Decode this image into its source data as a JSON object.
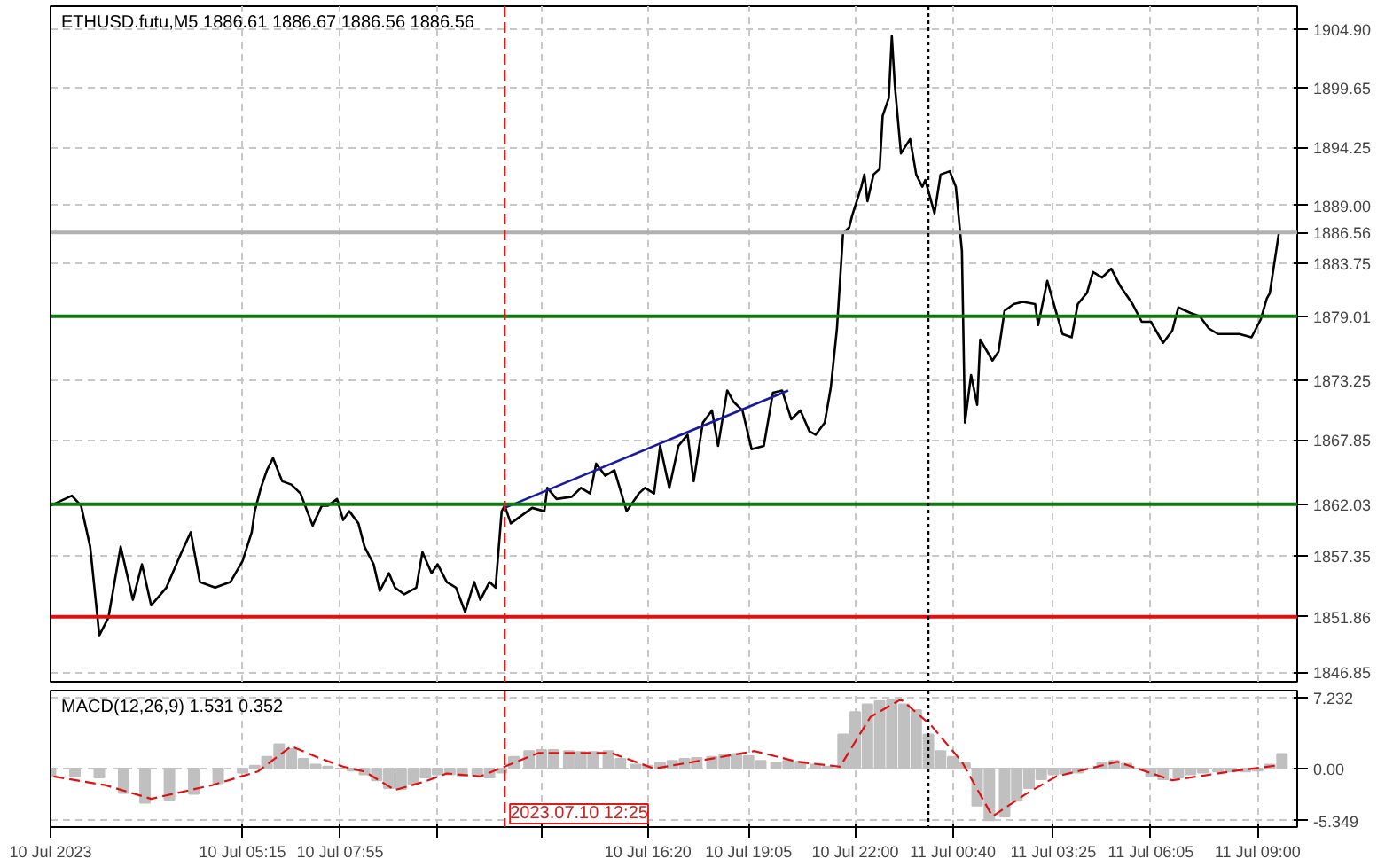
{
  "chart_data": [
    {
      "type": "line",
      "title": "ETHUSD.futu,M5  1886.61 1886.67 1886.56 1886.56",
      "xlim": [
        "2023-07-10T00:00",
        "2023-07-11T10:05"
      ],
      "ylim": [
        1846.0,
        1907.0
      ],
      "tick_labels": "y",
      "grid": true,
      "xticks": [
        {
          "value": "2023-07-10T00:00",
          "label": null
        },
        {
          "value": "2023-07-10T05:15",
          "label": null
        },
        {
          "value": "2023-07-10T07:55",
          "label": null
        },
        {
          "value": "2023-07-10T10:35",
          "label": null
        },
        {
          "value": "2023-07-10T13:25",
          "label": null
        },
        {
          "value": "2023-07-10T16:20",
          "label": null
        },
        {
          "value": "2023-07-10T19:05",
          "label": null
        },
        {
          "value": "2023-07-10T22:00",
          "label": null
        },
        {
          "value": "2023-07-11T00:40",
          "label": null
        },
        {
          "value": "2023-07-11T03:25",
          "label": null
        },
        {
          "value": "2023-07-11T06:05",
          "label": null
        },
        {
          "value": "2023-07-11T09:00",
          "label": null
        }
      ],
      "yticks": [
        {
          "value": 1904.9,
          "label": "1904.90"
        },
        {
          "value": 1899.65,
          "label": "1899.65"
        },
        {
          "value": 1894.25,
          "label": "1894.25"
        },
        {
          "value": 1889.0,
          "label": "1889.00"
        },
        {
          "value": 1883.75,
          "label": "1883.75"
        },
        {
          "value": 1873.25,
          "label": "1873.25"
        },
        {
          "value": 1867.85,
          "label": "1867.85"
        },
        {
          "value": 1857.35,
          "label": "1857.35"
        },
        {
          "value": 1846.85,
          "label": "1846.85"
        }
      ],
      "series": [
        {
          "color": "#000000",
          "x": [
            "2023-07-10T00:00",
            "2023-07-10T00:35",
            "2023-07-10T00:50",
            "2023-07-10T01:05",
            "2023-07-10T01:20",
            "2023-07-10T01:35",
            "2023-07-10T01:55",
            "2023-07-10T02:15",
            "2023-07-10T02:30",
            "2023-07-10T02:45",
            "2023-07-10T03:10",
            "2023-07-10T03:35",
            "2023-07-10T03:50",
            "2023-07-10T04:05",
            "2023-07-10T04:30",
            "2023-07-10T04:55",
            "2023-07-10T05:15",
            "2023-07-10T05:30",
            "2023-07-10T05:35",
            "2023-07-10T05:45",
            "2023-07-10T05:55",
            "2023-07-10T06:05",
            "2023-07-10T06:20",
            "2023-07-10T06:35",
            "2023-07-10T06:50",
            "2023-07-10T07:10",
            "2023-07-10T07:25",
            "2023-07-10T07:35",
            "2023-07-10T07:50",
            "2023-07-10T08:00",
            "2023-07-10T08:10",
            "2023-07-10T08:25",
            "2023-07-10T08:35",
            "2023-07-10T08:50",
            "2023-07-10T09:00",
            "2023-07-10T09:15",
            "2023-07-10T09:25",
            "2023-07-10T09:40",
            "2023-07-10T10:00",
            "2023-07-10T10:10",
            "2023-07-10T10:25",
            "2023-07-10T10:35",
            "2023-07-10T10:50",
            "2023-07-10T11:05",
            "2023-07-10T11:20",
            "2023-07-10T11:35",
            "2023-07-10T11:45",
            "2023-07-10T12:00",
            "2023-07-10T12:10",
            "2023-07-10T12:20",
            "2023-07-10T12:25",
            "2023-07-10T12:35",
            "2023-07-10T12:55",
            "2023-07-10T13:10",
            "2023-07-10T13:30",
            "2023-07-10T13:35",
            "2023-07-10T13:50",
            "2023-07-10T14:15",
            "2023-07-10T14:30",
            "2023-07-10T14:45",
            "2023-07-10T14:55",
            "2023-07-10T15:10",
            "2023-07-10T15:25",
            "2023-07-10T15:45",
            "2023-07-10T16:05",
            "2023-07-10T16:15",
            "2023-07-10T16:30",
            "2023-07-10T16:40",
            "2023-07-10T16:55",
            "2023-07-10T17:10",
            "2023-07-10T17:25",
            "2023-07-10T17:35",
            "2023-07-10T17:50",
            "2023-07-10T18:05",
            "2023-07-10T18:15",
            "2023-07-10T18:30",
            "2023-07-10T18:40",
            "2023-07-10T18:55",
            "2023-07-10T19:10",
            "2023-07-10T19:30",
            "2023-07-10T19:45",
            "2023-07-10T20:00",
            "2023-07-10T20:15",
            "2023-07-10T20:30",
            "2023-07-10T20:45",
            "2023-07-10T20:55",
            "2023-07-10T21:10",
            "2023-07-10T21:20",
            "2023-07-10T21:30",
            "2023-07-10T21:40",
            "2023-07-10T21:50",
            "2023-07-10T21:55",
            "2023-07-10T22:10",
            "2023-07-10T22:15",
            "2023-07-10T22:20",
            "2023-07-10T22:30",
            "2023-07-10T22:40",
            "2023-07-10T22:45",
            "2023-07-10T22:55",
            "2023-07-10T23:00",
            "2023-07-10T23:05",
            "2023-07-10T23:15",
            "2023-07-10T23:30",
            "2023-07-10T23:40",
            "2023-07-10T23:50",
            "2023-07-10T23:55",
            "2023-07-11T00:10",
            "2023-07-11T00:20",
            "2023-07-11T00:35",
            "2023-07-11T00:45",
            "2023-07-11T00:55",
            "2023-07-11T01:00",
            "2023-07-11T01:10",
            "2023-07-11T01:20",
            "2023-07-11T01:25",
            "2023-07-11T01:45",
            "2023-07-11T01:55",
            "2023-07-11T02:05",
            "2023-07-11T02:20",
            "2023-07-11T02:35",
            "2023-07-11T02:55",
            "2023-07-11T03:00",
            "2023-07-11T03:15",
            "2023-07-11T03:30",
            "2023-07-11T03:40",
            "2023-07-11T03:55",
            "2023-07-11T04:05",
            "2023-07-11T04:20",
            "2023-07-11T04:30",
            "2023-07-11T04:45",
            "2023-07-11T05:00",
            "2023-07-11T05:15",
            "2023-07-11T05:35",
            "2023-07-11T05:50",
            "2023-07-11T06:05",
            "2023-07-11T06:25",
            "2023-07-11T06:40",
            "2023-07-11T06:50",
            "2023-07-11T07:10",
            "2023-07-11T07:25",
            "2023-07-11T07:40",
            "2023-07-11T07:55",
            "2023-07-11T08:15",
            "2023-07-11T08:30",
            "2023-07-11T08:50",
            "2023-07-11T09:05",
            "2023-07-11T09:15",
            "2023-07-11T09:20",
            "2023-07-11T09:35"
          ],
          "values": [
            1861.9,
            1862.8,
            1861.9,
            1858.2,
            1850.2,
            1851.8,
            1858.2,
            1853.4,
            1856.6,
            1852.9,
            1854.5,
            1857.7,
            1859.5,
            1855.0,
            1854.5,
            1855.0,
            1856.9,
            1859.5,
            1861.4,
            1863.5,
            1865.1,
            1866.2,
            1864.1,
            1863.8,
            1863.0,
            1860.1,
            1861.9,
            1861.9,
            1862.5,
            1860.6,
            1861.4,
            1860.3,
            1858.2,
            1856.6,
            1854.2,
            1855.8,
            1854.5,
            1853.9,
            1854.5,
            1857.7,
            1855.8,
            1856.6,
            1855.0,
            1854.5,
            1852.3,
            1855.0,
            1853.4,
            1855.0,
            1854.5,
            1861.4,
            1861.9,
            1860.3,
            1861.1,
            1861.7,
            1861.4,
            1863.5,
            1862.5,
            1862.7,
            1863.5,
            1863.0,
            1865.7,
            1864.6,
            1865.1,
            1861.4,
            1863.0,
            1863.5,
            1863.0,
            1867.3,
            1863.5,
            1867.3,
            1868.3,
            1864.1,
            1869.4,
            1870.5,
            1867.3,
            1872.3,
            1871.3,
            1870.5,
            1867.0,
            1867.3,
            1872.1,
            1872.3,
            1869.7,
            1870.5,
            1868.6,
            1868.3,
            1869.4,
            1872.6,
            1877.9,
            1886.5,
            1887.0,
            1888.1,
            1890.7,
            1891.8,
            1889.4,
            1891.8,
            1892.3,
            1897.1,
            1898.7,
            1904.3,
            1899.8,
            1893.7,
            1895.0,
            1891.8,
            1890.7,
            1891.3,
            1888.3,
            1891.8,
            1892.1,
            1890.7,
            1884.9,
            1869.4,
            1873.7,
            1871.0,
            1876.9,
            1875.0,
            1875.8,
            1879.5,
            1880.1,
            1880.3,
            1880.1,
            1878.2,
            1882.2,
            1879.3,
            1877.4,
            1877.1,
            1880.1,
            1881.1,
            1883.0,
            1882.5,
            1883.3,
            1881.7,
            1880.1,
            1878.5,
            1878.5,
            1876.6,
            1877.7,
            1879.8,
            1879.3,
            1879.0,
            1877.9,
            1877.4,
            1877.4,
            1877.4,
            1877.1,
            1878.7,
            1880.6,
            1881.1,
            1886.56
          ]
        },
        {
          "color": "#1a1aa0",
          "x": [
            "2023-07-10T12:25",
            "2023-07-10T20:10"
          ],
          "values": [
            1861.7,
            1872.3
          ]
        }
      ],
      "ref_lines": [
        {
          "axis": "y",
          "value": 1886.56,
          "label": "1886.56",
          "color": "#b0b0b0"
        },
        {
          "axis": "y",
          "value": 1879.01,
          "label": "1879.01",
          "color": "#0e7a0e"
        },
        {
          "axis": "y",
          "value": 1862.03,
          "label": "1862.03",
          "color": "#0e7a0e"
        },
        {
          "axis": "y",
          "value": 1851.86,
          "label": "1851.86",
          "color": "#e01010"
        },
        {
          "axis": "x",
          "value": "2023-07-10T12:25",
          "label": null,
          "color": "#d02020",
          "line_style": "dashed"
        },
        {
          "axis": "x",
          "value": "2023-07-11T00:00",
          "label": null,
          "color": "#000000",
          "line_style": "dotted"
        }
      ]
    },
    {
      "type": "bar",
      "title": "MACD(12,26,9) 1.531 0.352",
      "xlim": [
        "2023-07-10T00:00",
        "2023-07-11T10:05"
      ],
      "ylim": [
        -6.0,
        8.0
      ],
      "grid": true,
      "xticks": [
        {
          "value": "2023-07-10T00:00",
          "label": "10 Jul 2023"
        },
        {
          "value": "2023-07-10T05:15",
          "label": "10 Jul 05:15"
        },
        {
          "value": "2023-07-10T07:55",
          "label": "10 Jul 07:55"
        },
        {
          "value": "2023-07-10T10:35",
          "label": null
        },
        {
          "value": "2023-07-10T13:25",
          "label": null
        },
        {
          "value": "2023-07-10T16:20",
          "label": "10 Jul 16:20"
        },
        {
          "value": "2023-07-10T19:05",
          "label": "10 Jul 19:05"
        },
        {
          "value": "2023-07-10T22:00",
          "label": "10 Jul 22:00"
        },
        {
          "value": "2023-07-11T00:40",
          "label": "11 Jul 00:40"
        },
        {
          "value": "2023-07-11T03:25",
          "label": "11 Jul 03:25"
        },
        {
          "value": "2023-07-11T06:05",
          "label": "11 Jul 06:05"
        },
        {
          "value": "2023-07-11T09:00",
          "label": "11 Jul 09:00"
        }
      ],
      "yticks": [
        7.232,
        {
          "value": 0,
          "label": "0.00"
        },
        -5.349
      ],
      "series": [
        {
          "color": "#c0c0c0",
          "x": [
            "2023-07-10T00:00",
            "2023-07-10T00:40",
            "2023-07-10T01:20",
            "2023-07-10T02:00",
            "2023-07-10T02:35",
            "2023-07-10T03:15",
            "2023-07-10T03:55",
            "2023-07-10T04:35",
            "2023-07-10T05:15",
            "2023-07-10T05:35",
            "2023-07-10T05:55",
            "2023-07-10T06:15",
            "2023-07-10T06:35",
            "2023-07-10T06:55",
            "2023-07-10T07:15",
            "2023-07-10T07:35",
            "2023-07-10T07:55",
            "2023-07-10T08:15",
            "2023-07-10T08:35",
            "2023-07-10T08:55",
            "2023-07-10T09:15",
            "2023-07-10T09:35",
            "2023-07-10T09:55",
            "2023-07-10T10:15",
            "2023-07-10T10:35",
            "2023-07-10T10:55",
            "2023-07-10T11:15",
            "2023-07-10T11:40",
            "2023-07-10T12:00",
            "2023-07-10T12:20",
            "2023-07-10T12:40",
            "2023-07-10T13:05",
            "2023-07-10T13:25",
            "2023-07-10T13:45",
            "2023-07-10T14:10",
            "2023-07-10T14:30",
            "2023-07-10T14:50",
            "2023-07-10T15:15",
            "2023-07-10T15:35",
            "2023-07-10T16:00",
            "2023-07-10T16:20",
            "2023-07-10T16:40",
            "2023-07-10T17:00",
            "2023-07-10T17:20",
            "2023-07-10T17:40",
            "2023-07-10T18:05",
            "2023-07-10T18:25",
            "2023-07-10T18:45",
            "2023-07-10T19:05",
            "2023-07-10T19:25",
            "2023-07-10T19:50",
            "2023-07-10T20:10",
            "2023-07-10T20:30",
            "2023-07-10T20:55",
            "2023-07-10T21:15",
            "2023-07-10T21:40",
            "2023-07-10T22:00",
            "2023-07-10T22:20",
            "2023-07-10T22:40",
            "2023-07-10T23:00",
            "2023-07-10T23:20",
            "2023-07-10T23:40",
            "2023-07-11T00:00",
            "2023-07-11T00:20",
            "2023-07-11T00:40",
            "2023-07-11T01:00",
            "2023-07-11T01:20",
            "2023-07-11T01:40",
            "2023-07-11T02:05",
            "2023-07-11T02:25",
            "2023-07-11T02:45",
            "2023-07-11T03:05",
            "2023-07-11T03:25",
            "2023-07-11T03:45",
            "2023-07-11T04:05",
            "2023-07-11T04:25",
            "2023-07-11T04:45",
            "2023-07-11T05:05",
            "2023-07-11T05:25",
            "2023-07-11T05:45",
            "2023-07-11T06:05",
            "2023-07-11T06:25",
            "2023-07-11T06:50",
            "2023-07-11T07:10",
            "2023-07-11T07:30",
            "2023-07-11T07:55",
            "2023-07-11T08:15",
            "2023-07-11T08:40",
            "2023-07-11T09:00",
            "2023-07-11T09:20",
            "2023-07-11T09:40"
          ],
          "values": [
            -0.8,
            -0.8,
            -0.9,
            -2.5,
            -3.5,
            -3.2,
            -2.6,
            -1.5,
            -0.4,
            0.3,
            1.2,
            2.5,
            2.0,
            1.0,
            0.4,
            0.2,
            0.0,
            -0.2,
            -0.6,
            -1.2,
            -2.0,
            -2.1,
            -1.6,
            -0.9,
            -0.6,
            -0.6,
            -0.7,
            -0.8,
            -0.9,
            -0.4,
            1.2,
            1.8,
            1.9,
            1.9,
            1.8,
            1.7,
            1.7,
            1.8,
            1.0,
            0.4,
            0.3,
            0.6,
            0.8,
            1.0,
            1.1,
            1.2,
            1.4,
            1.5,
            1.3,
            0.8,
            0.6,
            0.8,
            0.7,
            0.4,
            0.2,
            3.5,
            5.8,
            6.6,
            6.9,
            7.0,
            6.6,
            6.0,
            3.5,
            1.8,
            1.2,
            0.6,
            -3.8,
            -5.3,
            -4.9,
            -3.3,
            -2.0,
            -1.1,
            -0.6,
            -0.5,
            -0.4,
            0.0,
            0.6,
            0.8,
            0.5,
            0.0,
            -0.8,
            -1.1,
            -0.9,
            -0.6,
            -0.4,
            -0.3,
            -0.3,
            -0.3,
            -0.2,
            0.4,
            1.5
          ]
        },
        {
          "type": "line",
          "color": "#e01010",
          "line_style": "dashed",
          "x": [
            "2023-07-10T00:05",
            "2023-07-10T01:30",
            "2023-07-10T02:45",
            "2023-07-10T04:25",
            "2023-07-10T05:40",
            "2023-07-10T06:35",
            "2023-07-10T07:20",
            "2023-07-10T08:00",
            "2023-07-10T08:35",
            "2023-07-10T09:25",
            "2023-07-10T10:15",
            "2023-07-10T10:50",
            "2023-07-10T11:45",
            "2023-07-10T12:25",
            "2023-07-10T13:20",
            "2023-07-10T15:20",
            "2023-07-10T16:30",
            "2023-07-10T17:35",
            "2023-07-10T19:15",
            "2023-07-10T20:25",
            "2023-07-10T21:35",
            "2023-07-10T22:25",
            "2023-07-10T23:15",
            "2023-07-11T00:05",
            "2023-07-11T00:55",
            "2023-07-11T01:45",
            "2023-07-11T02:40",
            "2023-07-11T03:30",
            "2023-07-11T05:10",
            "2023-07-11T06:40",
            "2023-07-11T08:15",
            "2023-07-11T09:35"
          ],
          "values": [
            -0.8,
            -1.7,
            -3.1,
            -1.7,
            -0.3,
            2.3,
            1.1,
            0.2,
            -0.3,
            -2.2,
            -1.3,
            -0.5,
            -0.8,
            0.2,
            1.6,
            1.6,
            0.0,
            0.7,
            1.8,
            0.7,
            0.2,
            5.3,
            7.1,
            4.4,
            0.7,
            -4.9,
            -2.6,
            -0.8,
            0.7,
            -1.2,
            -0.3,
            0.35
          ]
        }
      ],
      "ref_lines": [
        {
          "axis": "x",
          "value": "2023-07-10T12:25",
          "label": "2023.07.10 12:25",
          "color": "#d02020",
          "line_style": "dashed"
        },
        {
          "axis": "x",
          "value": "2023-07-11T00:00",
          "label": null,
          "color": "#000000",
          "line_style": "dotted"
        }
      ]
    }
  ]
}
